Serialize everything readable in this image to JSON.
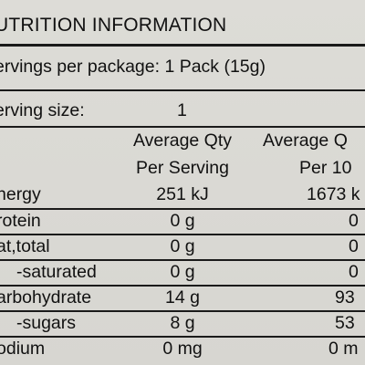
{
  "panel": {
    "title": "UTRITION INFORMATION",
    "servings_per_package": "ervings per package: 1 Pack (15g)",
    "serving_size_label": "erving size:",
    "serving_size_value": "1"
  },
  "table": {
    "columns": [
      {
        "line1": "Average Qty",
        "line2": "Per Serving"
      },
      {
        "line1": "Average Q",
        "line2": "Per 10"
      }
    ],
    "rows": [
      {
        "label": "nergy",
        "per_serving": "251 kJ",
        "per_100": "1673 k"
      },
      {
        "label": "rotein",
        "per_serving": "0 g",
        "per_100": "0"
      },
      {
        "label": "at,total",
        "per_serving": "0 g",
        "per_100": "0"
      },
      {
        "label": "-saturated",
        "per_serving": "0 g",
        "per_100": "0"
      },
      {
        "label": "arbohydrate",
        "per_serving": "14 g",
        "per_100": "93"
      },
      {
        "label": "-sugars",
        "per_serving": "8 g",
        "per_100": "53"
      },
      {
        "label": "odium",
        "per_serving": "0 mg",
        "per_100": "0 m"
      }
    ]
  }
}
